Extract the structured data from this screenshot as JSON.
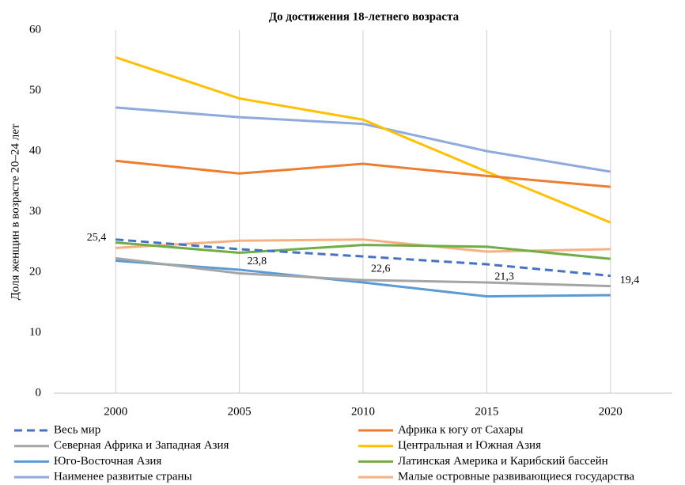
{
  "chart_data": {
    "type": "line",
    "title": "До достижения 18-летнего возраста",
    "y_label": "Доля женщин в возрасте 20–24 лет",
    "categories": [
      "2000",
      "2005",
      "2010",
      "2015",
      "2020"
    ],
    "ylim": [
      0,
      60
    ],
    "yticks": [
      0,
      10,
      20,
      30,
      40,
      50,
      60
    ],
    "grid": "vertical",
    "legend": "bottom",
    "series": [
      {
        "name": "Весь мир",
        "color": "#4472c4",
        "dashed": true,
        "values": [
          25.4,
          23.8,
          22.6,
          21.3,
          19.4
        ],
        "value_labels": [
          "25,4",
          "23,8",
          "22,6",
          "21,3",
          "19,4"
        ]
      },
      {
        "name": "Африка к югу от Сахары",
        "color": "#ed7d31",
        "values": [
          38.4,
          36.3,
          37.9,
          35.9,
          34.1
        ]
      },
      {
        "name": "Северная Африка и Западная Азия",
        "color": "#a5a5a5",
        "values": [
          22.3,
          19.8,
          18.7,
          18.3,
          17.7
        ]
      },
      {
        "name": "Центральная и Южная Азия",
        "color": "#ffc000",
        "values": [
          55.5,
          48.7,
          45.2,
          36.6,
          28.2
        ]
      },
      {
        "name": "Юго-Восточная Азия",
        "color": "#5b9bd5",
        "values": [
          21.9,
          20.4,
          18.3,
          16.0,
          16.2
        ]
      },
      {
        "name": "Латинская Америка и Карибский бассейн",
        "color": "#70ad47",
        "values": [
          24.9,
          23.2,
          24.5,
          24.2,
          22.2
        ]
      },
      {
        "name": "Наименее развитые страны",
        "color": "#8faadc",
        "values": [
          47.2,
          45.6,
          44.5,
          40.0,
          36.6
        ]
      },
      {
        "name": "Малые островные развивающиеся государства",
        "color": "#f4b183",
        "values": [
          24.0,
          25.2,
          25.4,
          23.4,
          23.8
        ]
      }
    ]
  }
}
